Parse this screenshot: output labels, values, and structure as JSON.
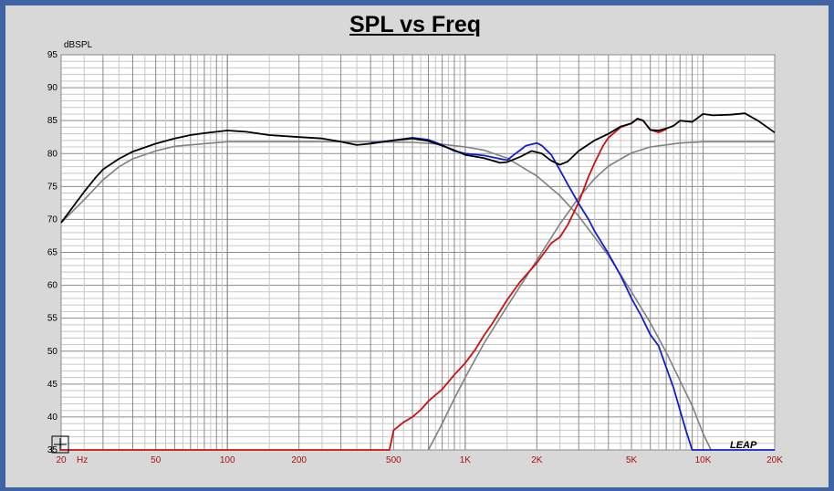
{
  "chart_data": {
    "type": "line",
    "title": "SPL vs Freq",
    "ylabel": "dBSPL",
    "xunit": "Hz",
    "xscale": "log",
    "xlim": [
      20,
      20000
    ],
    "ylim": [
      35,
      95
    ],
    "grid": true,
    "xticks": [
      {
        "value": 20,
        "label": "20"
      },
      {
        "value": 50,
        "label": "50"
      },
      {
        "value": 100,
        "label": "100"
      },
      {
        "value": 200,
        "label": "200"
      },
      {
        "value": 500,
        "label": "500"
      },
      {
        "value": 1000,
        "label": "1K"
      },
      {
        "value": 2000,
        "label": "2K"
      },
      {
        "value": 5000,
        "label": "5K"
      },
      {
        "value": 10000,
        "label": "10K"
      },
      {
        "value": 20000,
        "label": "20K"
      }
    ],
    "yticks": [
      35,
      40,
      45,
      50,
      55,
      60,
      65,
      70,
      75,
      80,
      85,
      90,
      95
    ],
    "series": [
      {
        "color": "#808080",
        "points": [
          [
            20,
            69.5
          ],
          [
            25,
            73
          ],
          [
            30,
            76
          ],
          [
            35,
            78
          ],
          [
            40,
            79.2
          ],
          [
            50,
            80.4
          ],
          [
            60,
            81.1
          ],
          [
            80,
            81.5
          ],
          [
            100,
            81.8
          ],
          [
            200,
            81.8
          ],
          [
            400,
            81.8
          ],
          [
            600,
            81.7
          ],
          [
            800,
            81.4
          ],
          [
            1000,
            81.0
          ],
          [
            1200,
            80.5
          ],
          [
            1500,
            79.3
          ],
          [
            2000,
            76.6
          ],
          [
            2500,
            73.6
          ],
          [
            3000,
            70.5
          ],
          [
            4000,
            64.5
          ],
          [
            5000,
            59
          ],
          [
            6000,
            54.3
          ],
          [
            7000,
            49.8
          ],
          [
            8000,
            45.5
          ],
          [
            9000,
            41.7
          ],
          [
            10000,
            37.5
          ],
          [
            10800,
            35
          ]
        ]
      },
      {
        "color": "#808080",
        "points": [
          [
            700,
            35
          ],
          [
            800,
            39
          ],
          [
            900,
            42.8
          ],
          [
            1000,
            46
          ],
          [
            1200,
            51.2
          ],
          [
            1500,
            56.8
          ],
          [
            2000,
            63.8
          ],
          [
            2500,
            69.3
          ],
          [
            3000,
            73.3
          ],
          [
            3500,
            76.2
          ],
          [
            4000,
            78.1
          ],
          [
            5000,
            80.1
          ],
          [
            6000,
            81.0
          ],
          [
            8000,
            81.6
          ],
          [
            10000,
            81.8
          ],
          [
            20000,
            81.8
          ]
        ]
      },
      {
        "color": "#cc1010",
        "points": [
          [
            20,
            35
          ],
          [
            480,
            35
          ],
          [
            500,
            38
          ],
          [
            550,
            39.2
          ],
          [
            600,
            40
          ],
          [
            650,
            41.1
          ],
          [
            700,
            42.4
          ],
          [
            800,
            44.2
          ],
          [
            900,
            46.4
          ],
          [
            1000,
            48.2
          ],
          [
            1100,
            50.2
          ],
          [
            1200,
            52.4
          ],
          [
            1300,
            54.2
          ],
          [
            1500,
            57.8
          ],
          [
            1700,
            60.5
          ],
          [
            2000,
            63.4
          ],
          [
            2300,
            66.4
          ],
          [
            2500,
            67.3
          ],
          [
            2700,
            69.2
          ],
          [
            3000,
            72.6
          ],
          [
            3300,
            76.5
          ],
          [
            3500,
            78.6
          ],
          [
            3800,
            81.2
          ],
          [
            4000,
            82.4
          ],
          [
            4500,
            84.0
          ],
          [
            5000,
            84.6
          ],
          [
            5300,
            85.3
          ],
          [
            5600,
            85.0
          ],
          [
            6000,
            83.6
          ],
          [
            6500,
            83.2
          ],
          [
            7000,
            83.7
          ]
        ]
      },
      {
        "color": "#1020cc",
        "points": [
          [
            400,
            81.6
          ],
          [
            500,
            82.0
          ],
          [
            600,
            82.4
          ],
          [
            700,
            82.1
          ],
          [
            800,
            81.3
          ],
          [
            900,
            80.4
          ],
          [
            1000,
            80.0
          ],
          [
            1200,
            79.7
          ],
          [
            1400,
            79.2
          ],
          [
            1500,
            79.0
          ],
          [
            1600,
            79.8
          ],
          [
            1700,
            80.5
          ],
          [
            1800,
            81.2
          ],
          [
            2000,
            81.6
          ],
          [
            2100,
            81.2
          ],
          [
            2300,
            79.8
          ],
          [
            2500,
            77.5
          ],
          [
            2700,
            75.3
          ],
          [
            3000,
            72.4
          ],
          [
            3300,
            70.0
          ],
          [
            3500,
            68.2
          ],
          [
            4000,
            64.8
          ],
          [
            4500,
            61.5
          ],
          [
            5000,
            58.0
          ],
          [
            5500,
            55.3
          ],
          [
            6000,
            52.5
          ],
          [
            6500,
            50.8
          ],
          [
            7000,
            47.5
          ],
          [
            7500,
            44.5
          ],
          [
            8000,
            41.0
          ],
          [
            8500,
            37.8
          ],
          [
            9000,
            35
          ],
          [
            20000,
            35
          ]
        ]
      },
      {
        "color": "#000000",
        "points": [
          [
            20,
            69.5
          ],
          [
            22,
            71.5
          ],
          [
            25,
            74.2
          ],
          [
            28,
            76.4
          ],
          [
            30,
            77.6
          ],
          [
            35,
            79.2
          ],
          [
            40,
            80.3
          ],
          [
            50,
            81.5
          ],
          [
            60,
            82.3
          ],
          [
            70,
            82.8
          ],
          [
            80,
            83.1
          ],
          [
            100,
            83.5
          ],
          [
            120,
            83.3
          ],
          [
            150,
            82.8
          ],
          [
            200,
            82.5
          ],
          [
            250,
            82.3
          ],
          [
            300,
            81.8
          ],
          [
            350,
            81.3
          ],
          [
            400,
            81.5
          ],
          [
            500,
            82.0
          ],
          [
            600,
            82.3
          ],
          [
            700,
            81.9
          ],
          [
            800,
            81.2
          ],
          [
            900,
            80.5
          ],
          [
            1000,
            79.8
          ],
          [
            1200,
            79.3
          ],
          [
            1400,
            78.6
          ],
          [
            1500,
            78.7
          ],
          [
            1700,
            79.5
          ],
          [
            1900,
            80.4
          ],
          [
            2100,
            80.0
          ],
          [
            2300,
            78.9
          ],
          [
            2500,
            78.3
          ],
          [
            2700,
            78.8
          ],
          [
            3000,
            80.4
          ],
          [
            3500,
            82.0
          ],
          [
            4000,
            83.0
          ],
          [
            4500,
            84.1
          ],
          [
            5000,
            84.6
          ],
          [
            5300,
            85.3
          ],
          [
            5600,
            85.0
          ],
          [
            6000,
            83.6
          ],
          [
            6500,
            83.5
          ],
          [
            7000,
            83.8
          ],
          [
            7500,
            84.2
          ],
          [
            8000,
            85.0
          ],
          [
            9000,
            84.8
          ],
          [
            10000,
            86.0
          ],
          [
            11000,
            85.8
          ],
          [
            13000,
            85.9
          ],
          [
            15000,
            86.1
          ],
          [
            17000,
            85.0
          ],
          [
            20000,
            83.2
          ]
        ]
      }
    ]
  },
  "logo": "LEAP"
}
